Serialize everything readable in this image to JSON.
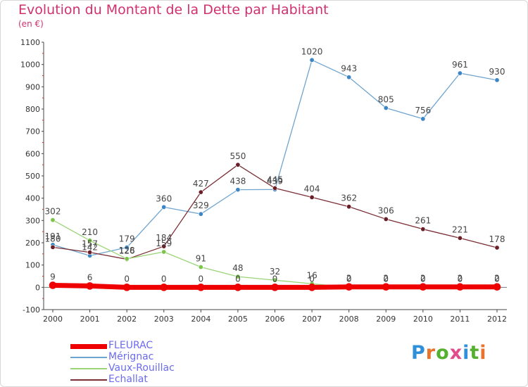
{
  "title": "Evolution du Montant de la Dette par Habitant",
  "subtitle": "(en €)",
  "logo": {
    "text": "Proxiti",
    "letter_colors": [
      "#2f8fd8",
      "#e8732a",
      "#55b030",
      "#e14d8c",
      "#2f8fd8",
      "#55b030",
      "#e8732a"
    ]
  },
  "chart_data": {
    "type": "line",
    "categories": [
      "2000",
      "2001",
      "2002",
      "2003",
      "2004",
      "2005",
      "2006",
      "2007",
      "2008",
      "2009",
      "2010",
      "2011",
      "2012"
    ],
    "ylim": [
      -100,
      1100
    ],
    "yticks": [
      -100,
      0,
      100,
      200,
      300,
      400,
      500,
      600,
      700,
      800,
      900,
      1000,
      1100
    ],
    "grid": false,
    "legend_position": "bottom-left",
    "series": [
      {
        "name": "FLEURAC",
        "color": "#ee0000",
        "marker": "#ee0000",
        "width": 7,
        "values": [
          9,
          6,
          0,
          0,
          0,
          0,
          0,
          0,
          2,
          2,
          2,
          2,
          2
        ],
        "labels": [
          "9",
          "6",
          "0",
          "0",
          "0",
          "0",
          "0",
          "0",
          "2",
          "2",
          "2",
          "2",
          "2"
        ]
      },
      {
        "name": "Mérignac",
        "color": "#6fa4cf",
        "marker": "#3c86c6",
        "width": 1.3,
        "values": [
          191,
          142,
          179,
          360,
          329,
          438,
          439,
          1020,
          943,
          805,
          756,
          961,
          930
        ],
        "labels": [
          "191",
          "142",
          "179",
          "360",
          "329",
          "438",
          "439",
          "1020",
          "943",
          "805",
          "756",
          "961",
          "930"
        ]
      },
      {
        "name": "Vaux-Rouillac",
        "color": "#9ad477",
        "marker": "#7cc44a",
        "width": 1.3,
        "values": [
          302,
          210,
          128,
          159,
          91,
          48,
          32,
          16,
          0,
          0,
          0,
          0,
          0
        ],
        "labels": [
          "302",
          "210",
          "128",
          "159",
          "91",
          "48",
          "32",
          "16",
          "0",
          "0",
          "0",
          "0",
          "0"
        ]
      },
      {
        "name": "Echallat",
        "color": "#7a2e35",
        "marker": "#6a1f28",
        "width": 1.3,
        "values": [
          180,
          157,
          126,
          184,
          427,
          550,
          445,
          404,
          362,
          306,
          261,
          221,
          178
        ],
        "labels": [
          "180",
          "157",
          "126",
          "184",
          "427",
          "550",
          "445",
          "404",
          "362",
          "306",
          "261",
          "221",
          "178"
        ]
      }
    ]
  }
}
